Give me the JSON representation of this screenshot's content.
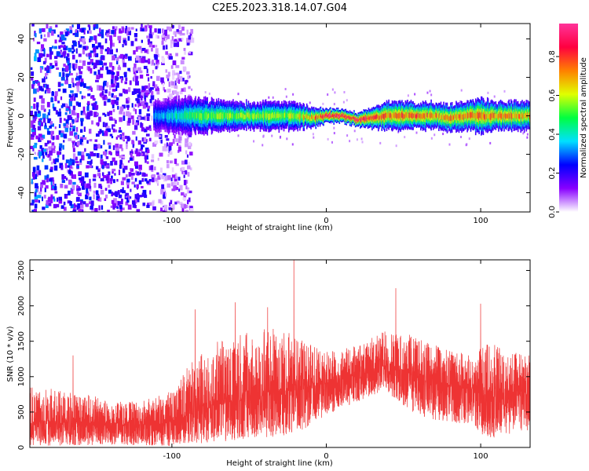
{
  "figure": {
    "title": "C2E5.2023.318.14.07.G04"
  },
  "chart_data": [
    {
      "type": "heatmap",
      "xlabel": "Height of straight line (km)",
      "ylabel": "Frequency (Hz)",
      "xlim": [
        -192,
        132
      ],
      "ylim": [
        -50,
        48
      ],
      "xticks": [
        -100,
        0,
        100
      ],
      "yticks": [
        -40,
        -20,
        0,
        20,
        40
      ],
      "colorbar": {
        "label": "Normalized spectral amplitude",
        "range": [
          0,
          0.97
        ],
        "ticks": [
          0.0,
          0.2,
          0.4,
          0.6,
          0.8
        ],
        "colors": [
          "#ffffff",
          "#8800ff",
          "#0000ff",
          "#00e0ff",
          "#00ff40",
          "#e0ff00",
          "#ff8000",
          "#ff0040",
          "#ff3399"
        ]
      },
      "noise_region": {
        "x_from": -192,
        "x_to": -88,
        "note": "scattered violet low-amplitude speckle"
      },
      "signal_band": [
        {
          "x": -112,
          "freq": 0,
          "half_width": 4,
          "amplitude": 0.3
        },
        {
          "x": -100,
          "freq": 0,
          "half_width": 5,
          "amplitude": 0.35
        },
        {
          "x": -90,
          "freq": 0,
          "half_width": 5,
          "amplitude": 0.45
        },
        {
          "x": -80,
          "freq": 0,
          "half_width": 5,
          "amplitude": 0.5
        },
        {
          "x": -60,
          "freq": 0,
          "half_width": 4,
          "amplitude": 0.55
        },
        {
          "x": -40,
          "freq": 0,
          "half_width": 4,
          "amplitude": 0.55
        },
        {
          "x": -20,
          "freq": 0,
          "half_width": 4,
          "amplitude": 0.55
        },
        {
          "x": -10,
          "freq": -1,
          "half_width": 3,
          "amplitude": 0.7
        },
        {
          "x": 0,
          "freq": 0,
          "half_width": 2,
          "amplitude": 0.85
        },
        {
          "x": 10,
          "freq": 0,
          "half_width": 2,
          "amplitude": 0.9
        },
        {
          "x": 20,
          "freq": -2,
          "half_width": 2,
          "amplitude": 0.85
        },
        {
          "x": 30,
          "freq": -1,
          "half_width": 3,
          "amplitude": 0.8
        },
        {
          "x": 40,
          "freq": 0,
          "half_width": 4,
          "amplitude": 0.75
        },
        {
          "x": 50,
          "freq": 0,
          "half_width": 4,
          "amplitude": 0.75
        },
        {
          "x": 60,
          "freq": 0,
          "half_width": 4,
          "amplitude": 0.75
        },
        {
          "x": 70,
          "freq": 0,
          "half_width": 4,
          "amplitude": 0.7
        },
        {
          "x": 80,
          "freq": -1,
          "half_width": 4,
          "amplitude": 0.7
        },
        {
          "x": 90,
          "freq": 0,
          "half_width": 4,
          "amplitude": 0.75
        },
        {
          "x": 100,
          "freq": 0,
          "half_width": 5,
          "amplitude": 0.75
        },
        {
          "x": 110,
          "freq": 0,
          "half_width": 4,
          "amplitude": 0.7
        },
        {
          "x": 120,
          "freq": 0,
          "half_width": 4,
          "amplitude": 0.7
        },
        {
          "x": 132,
          "freq": 0,
          "half_width": 4,
          "amplitude": 0.65
        }
      ]
    },
    {
      "type": "line",
      "xlabel": "Height of straight line (km)",
      "ylabel": "SNR (10 * v/v)",
      "xlim": [
        -192,
        132
      ],
      "ylim": [
        0,
        2650
      ],
      "xticks": [
        -100,
        0,
        100
      ],
      "yticks": [
        0,
        500,
        1000,
        1500,
        2000,
        2500
      ],
      "grid": false,
      "color": "#ee3333",
      "envelope": [
        {
          "x": -192,
          "low": 20,
          "high": 850,
          "mean": 330
        },
        {
          "x": -160,
          "low": 30,
          "high": 800,
          "mean": 330
        },
        {
          "x": -140,
          "low": 40,
          "high": 650,
          "mean": 300
        },
        {
          "x": -120,
          "low": 30,
          "high": 650,
          "mean": 300
        },
        {
          "x": -100,
          "low": 20,
          "high": 800,
          "mean": 350
        },
        {
          "x": -85,
          "low": 50,
          "high": 1300,
          "mean": 500
        },
        {
          "x": -70,
          "low": 80,
          "high": 1500,
          "mean": 600
        },
        {
          "x": -50,
          "low": 100,
          "high": 1650,
          "mean": 700
        },
        {
          "x": -30,
          "low": 150,
          "high": 1700,
          "mean": 750
        },
        {
          "x": -15,
          "low": 250,
          "high": 1500,
          "mean": 800
        },
        {
          "x": 0,
          "low": 450,
          "high": 1350,
          "mean": 900
        },
        {
          "x": 20,
          "low": 650,
          "high": 1450,
          "mean": 1000
        },
        {
          "x": 38,
          "low": 800,
          "high": 1650,
          "mean": 1150
        },
        {
          "x": 55,
          "low": 500,
          "high": 1600,
          "mean": 1050
        },
        {
          "x": 75,
          "low": 350,
          "high": 1400,
          "mean": 850
        },
        {
          "x": 95,
          "low": 300,
          "high": 1300,
          "mean": 800
        },
        {
          "x": 105,
          "low": 100,
          "high": 1500,
          "mean": 700
        },
        {
          "x": 120,
          "low": 200,
          "high": 1350,
          "mean": 750
        },
        {
          "x": 132,
          "low": 250,
          "high": 1300,
          "mean": 750
        }
      ],
      "spikes": [
        {
          "x": -192,
          "y": 1050
        },
        {
          "x": -164,
          "y": 1300
        },
        {
          "x": -85,
          "y": 1950
        },
        {
          "x": -59,
          "y": 2050
        },
        {
          "x": -38,
          "y": 1980
        },
        {
          "x": -21,
          "y": 2650
        },
        {
          "x": 45,
          "y": 2250
        },
        {
          "x": 100,
          "y": 2030
        }
      ]
    }
  ]
}
